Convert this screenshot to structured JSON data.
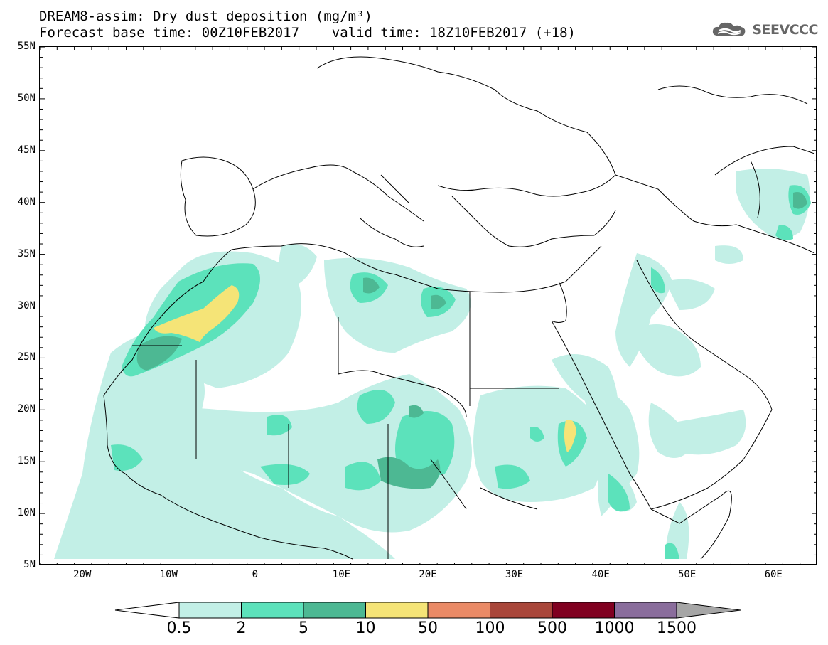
{
  "header": {
    "title": "DREAM8-assim: Dry dust deposition (mg/m³)",
    "subtitle": "Forecast base time: 00Z10FEB2017    valid time: 18Z10FEB2017 (+18)",
    "logo_text": "SEEVCCC",
    "logo_icon": "cloud-logo-icon"
  },
  "map": {
    "lat_labels": [
      "55N",
      "50N",
      "45N",
      "40N",
      "35N",
      "30N",
      "25N",
      "20N",
      "15N",
      "10N",
      "5N"
    ],
    "lon_labels": [
      "20W",
      "10W",
      "0",
      "10E",
      "20E",
      "30E",
      "40E",
      "50E",
      "60E"
    ],
    "lat_range": [
      5,
      55
    ],
    "lon_range": [
      -25,
      65
    ]
  },
  "colorbar": {
    "levels": [
      "0.5",
      "2",
      "5",
      "10",
      "50",
      "100",
      "500",
      "1000",
      "1500"
    ],
    "colors": [
      "#c2efe6",
      "#5ce2bb",
      "#4db893",
      "#f5e477",
      "#ea8a66",
      "#a9463a",
      "#800020",
      "#8a6d9c"
    ],
    "below_color": "#ffffff",
    "above_color": "#a6a6a6"
  }
}
